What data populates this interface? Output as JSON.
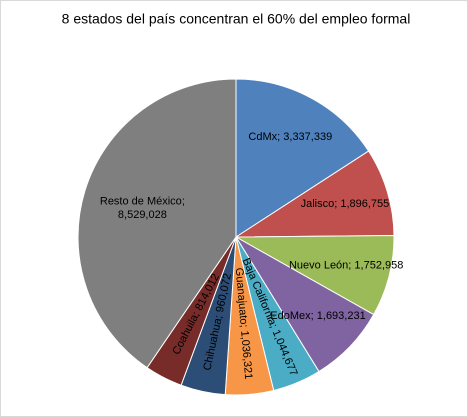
{
  "chart_data": {
    "type": "pie",
    "title": "8 estados del país concentran el 60% del empleo formal",
    "categories": [
      "CdMx",
      "Jalisco",
      "Nuevo León",
      "EdoMex",
      "Baja California",
      "Guanajuato",
      "Chihuahua",
      "Coahuila",
      "Resto de México"
    ],
    "values": [
      3337339,
      1896755,
      1752958,
      1693231,
      1044677,
      1036321,
      960072,
      814012,
      8529028
    ],
    "value_labels": [
      "3,337,339",
      "1,896,755",
      "1,752,958",
      "1,693,231",
      "1,044,677",
      "1,036,321",
      "960,072",
      "814,012",
      "8,529,028"
    ],
    "label_separator": "; ",
    "colors": [
      "#4f81bd",
      "#c0504d",
      "#9bbb59",
      "#8064a2",
      "#4bacc6",
      "#f79646",
      "#2c4d75",
      "#772c2a",
      "#7f7f7f"
    ]
  }
}
